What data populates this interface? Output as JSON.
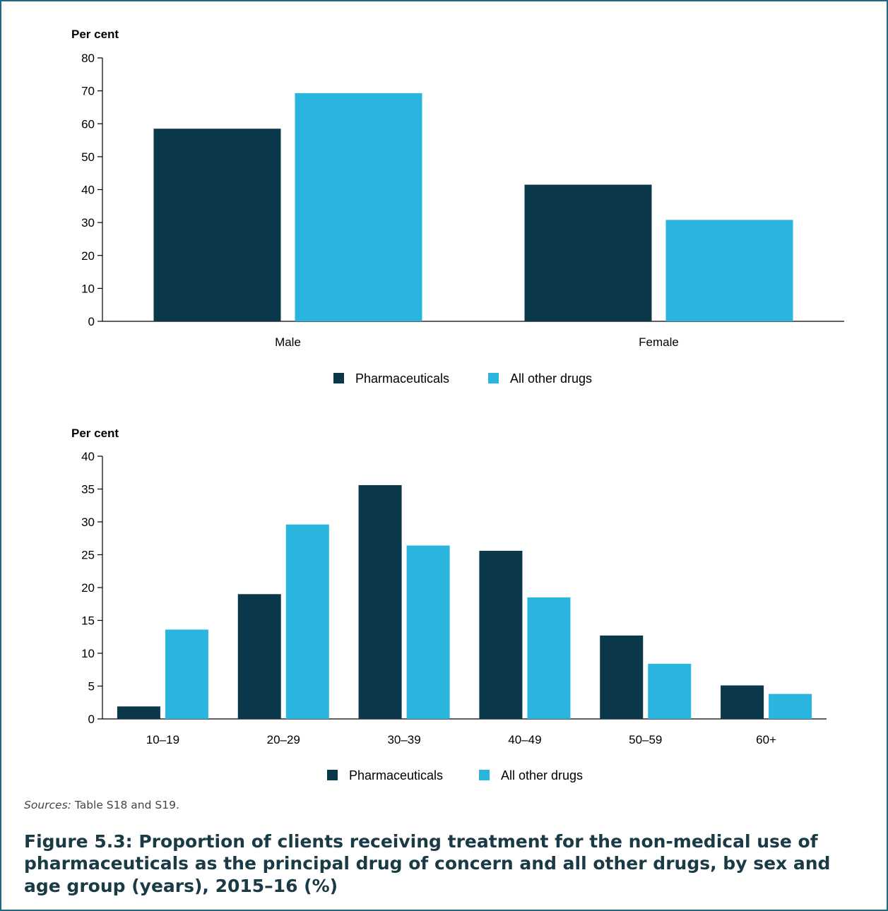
{
  "chart_data": [
    {
      "type": "bar",
      "ylabel": "Per cent",
      "ylim": [
        0,
        80
      ],
      "yticks": [
        0,
        10,
        20,
        30,
        40,
        50,
        60,
        70,
        80
      ],
      "categories": [
        "Male",
        "Female"
      ],
      "series": [
        {
          "name": "Pharmaceuticals",
          "color": "#0a3749",
          "values": [
            58.5,
            41.5
          ]
        },
        {
          "name": "All other drugs",
          "color": "#29b5dd",
          "values": [
            69.3,
            30.8
          ]
        }
      ],
      "legend": "bottom-center",
      "grid": false
    },
    {
      "type": "bar",
      "ylabel": "Per cent",
      "ylim": [
        0,
        40
      ],
      "yticks": [
        0,
        5,
        10,
        15,
        20,
        25,
        30,
        35,
        40
      ],
      "categories": [
        "10–19",
        "20–29",
        "30–39",
        "40–49",
        "50–59",
        "60+"
      ],
      "series": [
        {
          "name": "Pharmaceuticals",
          "color": "#0a3749",
          "values": [
            1.9,
            19.0,
            35.6,
            25.6,
            12.7,
            5.1
          ]
        },
        {
          "name": "All other drugs",
          "color": "#29b5dd",
          "values": [
            13.6,
            29.6,
            26.4,
            18.5,
            8.4,
            3.8
          ]
        }
      ],
      "legend": "bottom-center",
      "grid": false
    }
  ],
  "sources": {
    "lead": "Sources:",
    "text": " Table S18 and S19."
  },
  "caption": "Figure 5.3: Proportion of clients receiving treatment for the non-medical use of pharmaceuticals as the principal drug of concern and all other drugs, by sex and age group (years), 2015–16 (%)",
  "colors": {
    "frame": "#1e6b80",
    "axis": "#000000"
  }
}
